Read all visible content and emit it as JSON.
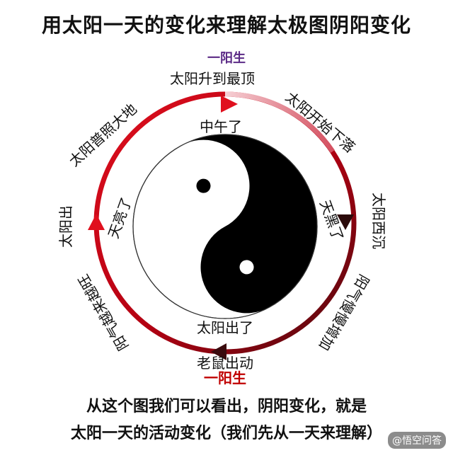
{
  "title": "用太阳一天的变化来理解太极图阴阳变化",
  "top_marker": "一阳生",
  "bottom_marker": "一阳生",
  "outer_labels": {
    "top": "太阳升到最顶",
    "upper_right": "太阳开始下落",
    "right": "太阳西沉",
    "lower_right": "阳气慢慢增加",
    "bottom": "老鼠出动",
    "lower_left": "阳气越来越旺",
    "left": "太阳出",
    "upper_left": "太阳普照大地"
  },
  "inner_labels": {
    "top": "中午了",
    "right": "天黑了",
    "bottom": "太阳出了",
    "left": "天亮了"
  },
  "footer_line1": "从这个图我们可以看出，阴阳变化，就是",
  "footer_line2": "太阳一天的活动变化（我们先从一天来理解）",
  "watermark": "@悟空问答",
  "colors": {
    "ring_start": "#b30012",
    "ring_end": "#5a0a10",
    "ring_light": "#f3c6cc",
    "yin": "#000000",
    "yang": "#ffffff",
    "marker_purple": "#5b2a86",
    "marker_red": "#c00000"
  }
}
